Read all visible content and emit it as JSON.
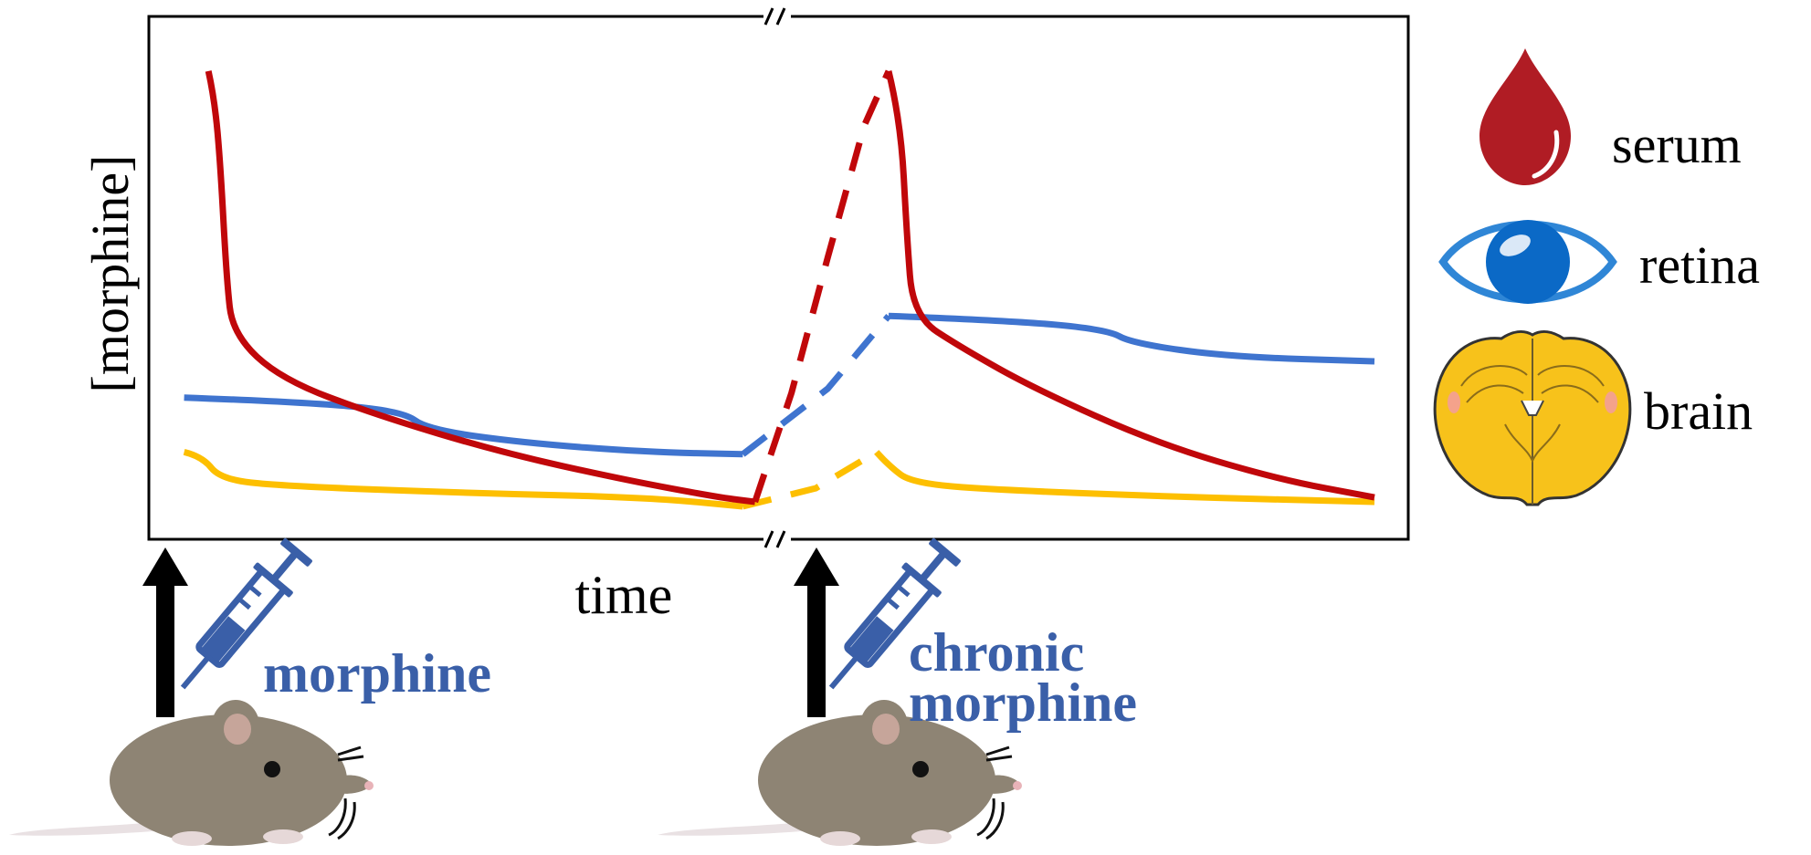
{
  "chart_data": {
    "type": "line",
    "title": "",
    "xlabel": "time",
    "ylabel": "[morphine]",
    "x_unit": "relative time (axis has no tick labels; axis break between phases)",
    "y_unit": "relative concentration (0-1, no tick labels)",
    "axis_break": true,
    "grid": false,
    "legend_position": "right",
    "series": [
      {
        "name": "serum",
        "color": "#c0070a",
        "phase1": [
          [
            0.04,
            0.96
          ],
          [
            0.045,
            0.9
          ],
          [
            0.05,
            0.75
          ],
          [
            0.055,
            0.5
          ],
          [
            0.06,
            0.38
          ],
          [
            0.1,
            0.28
          ],
          [
            0.18,
            0.2
          ],
          [
            0.28,
            0.12
          ],
          [
            0.38,
            0.06
          ],
          [
            0.46,
            0.02
          ],
          [
            0.49,
            0.01
          ]
        ],
        "bridge_dashed": [
          [
            0.49,
            0.01
          ],
          [
            0.52,
            0.25
          ],
          [
            0.55,
            0.55
          ],
          [
            0.58,
            0.84
          ],
          [
            0.6,
            0.96
          ]
        ],
        "phase2": [
          [
            0.6,
            0.96
          ],
          [
            0.61,
            0.85
          ],
          [
            0.615,
            0.6
          ],
          [
            0.62,
            0.42
          ],
          [
            0.66,
            0.35
          ],
          [
            0.72,
            0.26
          ],
          [
            0.82,
            0.14
          ],
          [
            0.92,
            0.06
          ],
          [
            1.0,
            0.02
          ]
        ]
      },
      {
        "name": "retina",
        "color": "#3f74cf",
        "phase1": [
          [
            0.02,
            0.24
          ],
          [
            0.12,
            0.23
          ],
          [
            0.2,
            0.21
          ],
          [
            0.22,
            0.17
          ],
          [
            0.3,
            0.14
          ],
          [
            0.4,
            0.12
          ],
          [
            0.48,
            0.115
          ]
        ],
        "bridge_dashed": [
          [
            0.48,
            0.115
          ],
          [
            0.55,
            0.26
          ],
          [
            0.6,
            0.42
          ]
        ],
        "phase2": [
          [
            0.6,
            0.42
          ],
          [
            0.7,
            0.41
          ],
          [
            0.78,
            0.39
          ],
          [
            0.8,
            0.36
          ],
          [
            0.88,
            0.33
          ],
          [
            1.0,
            0.32
          ]
        ]
      },
      {
        "name": "brain",
        "color": "#fdbf00",
        "phase1": [
          [
            0.02,
            0.12
          ],
          [
            0.035,
            0.11
          ],
          [
            0.05,
            0.06
          ],
          [
            0.1,
            0.045
          ],
          [
            0.25,
            0.03
          ],
          [
            0.4,
            0.02
          ],
          [
            0.48,
            0.0
          ]
        ],
        "bridge_dashed": [
          [
            0.48,
            0.0
          ],
          [
            0.54,
            0.04
          ],
          [
            0.59,
            0.12
          ]
        ],
        "phase2": [
          [
            0.59,
            0.12
          ],
          [
            0.6,
            0.09
          ],
          [
            0.62,
            0.05
          ],
          [
            0.7,
            0.035
          ],
          [
            0.85,
            0.02
          ],
          [
            1.0,
            0.01
          ]
        ]
      }
    ],
    "annotations": [
      "morphine",
      "chronic",
      "morphine"
    ]
  },
  "legend": {
    "serum": "serum",
    "retina": "retina",
    "brain": "brain"
  },
  "injections": {
    "first_label": "morphine",
    "second_label_line1": "chronic",
    "second_label_line2": "morphine"
  },
  "colors": {
    "serum": "#c0070a",
    "retina": "#3f74cf",
    "brain": "#fdbf00",
    "syringe": "#3a5fa8",
    "injection_text": "#3a5fa8",
    "mouse_body": "#8e8474"
  },
  "icons": [
    "blood-drop-icon",
    "eye-icon",
    "brain-icon",
    "syringe-icon",
    "mouse-icon",
    "up-arrow-icon"
  ]
}
